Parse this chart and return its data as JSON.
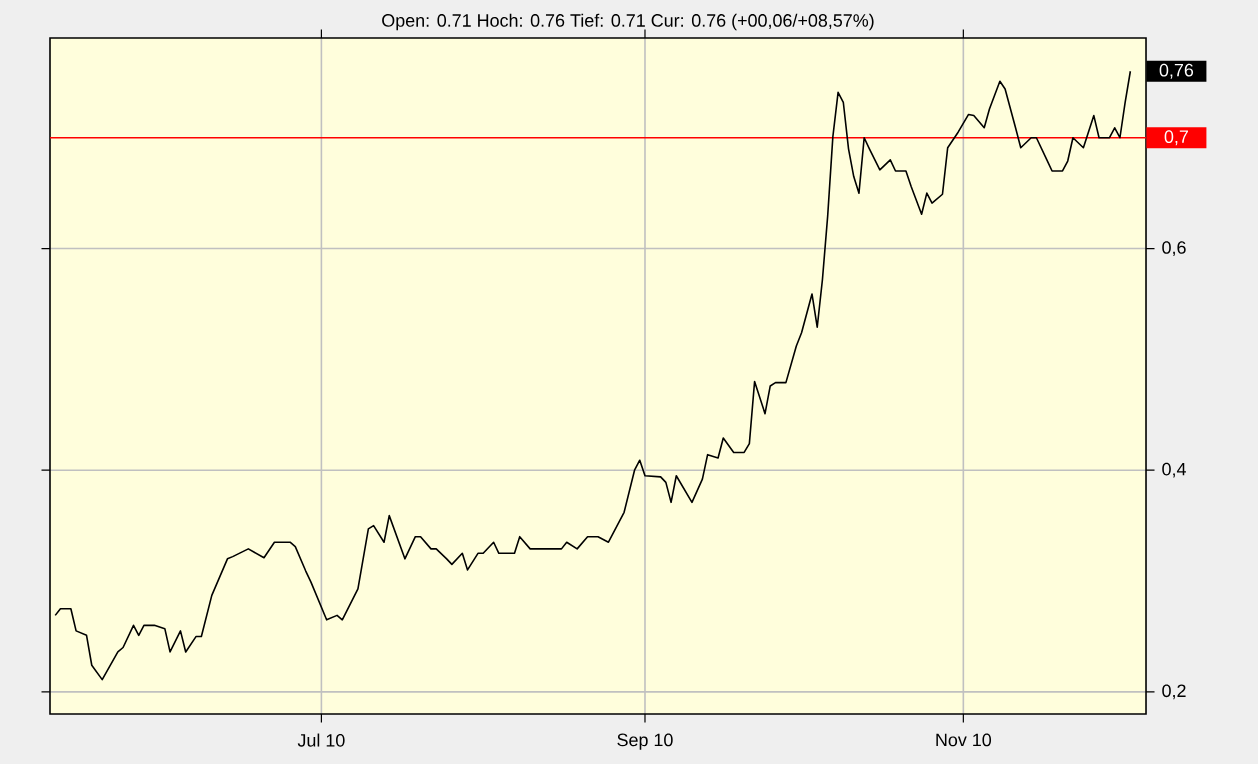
{
  "chart_data": {
    "type": "line",
    "subtitle": "Open: 0.71 Hoch: 0.76 Tief: 0.71 Cur: 0.76 (+00,06/+08,57%)",
    "series": [
      {
        "color": "#000000",
        "x": [
          "2010-05-11",
          "2010-05-12",
          "2010-05-14",
          "2010-05-15",
          "2010-05-17",
          "2010-05-18",
          "2010-05-20",
          "2010-05-23",
          "2010-05-24",
          "2010-05-26",
          "2010-05-27",
          "2010-05-28",
          "2010-05-30",
          "2010-06-01",
          "2010-06-02",
          "2010-06-04",
          "2010-06-05",
          "2010-06-07",
          "2010-06-08",
          "2010-06-10",
          "2010-06-13",
          "2010-06-14",
          "2010-06-17",
          "2010-06-20",
          "2010-06-22",
          "2010-06-25",
          "2010-06-26",
          "2010-06-28",
          "2010-06-29",
          "2010-07-02",
          "2010-07-04",
          "2010-07-05",
          "2010-07-08",
          "2010-07-10",
          "2010-07-11",
          "2010-07-13",
          "2010-07-14",
          "2010-07-17",
          "2010-07-19",
          "2010-07-20",
          "2010-07-22",
          "2010-07-23",
          "2010-07-25",
          "2010-07-26",
          "2010-07-28",
          "2010-07-29",
          "2010-07-31",
          "2010-08-01",
          "2010-08-03",
          "2010-08-04",
          "2010-08-07",
          "2010-08-08",
          "2010-08-10",
          "2010-08-16",
          "2010-08-17",
          "2010-08-19",
          "2010-08-21",
          "2010-08-23",
          "2010-08-25",
          "2010-08-28",
          "2010-08-30",
          "2010-08-31",
          "2010-09-01",
          "2010-09-04",
          "2010-09-05",
          "2010-09-06",
          "2010-09-07",
          "2010-09-10",
          "2010-09-12",
          "2010-09-13",
          "2010-09-15",
          "2010-09-16",
          "2010-09-18",
          "2010-09-20",
          "2010-09-21",
          "2010-09-22",
          "2010-09-24",
          "2010-09-25",
          "2010-09-26",
          "2010-09-28",
          "2010-09-30",
          "2010-10-01",
          "2010-10-03",
          "2010-10-04",
          "2010-10-05",
          "2010-10-06",
          "2010-10-07",
          "2010-10-08",
          "2010-10-09",
          "2010-10-10",
          "2010-10-11",
          "2010-10-12",
          "2010-10-13",
          "2010-10-14",
          "2010-10-16",
          "2010-10-18",
          "2010-10-19",
          "2010-10-21",
          "2010-10-22",
          "2010-10-24",
          "2010-10-25",
          "2010-10-26",
          "2010-10-28",
          "2010-10-29",
          "2010-10-31",
          "2010-11-02",
          "2010-11-03",
          "2010-11-05",
          "2010-11-06",
          "2010-11-08",
          "2010-11-09",
          "2010-11-11",
          "2010-11-12",
          "2010-11-14",
          "2010-11-15",
          "2010-11-17",
          "2010-11-18",
          "2010-11-20",
          "2010-11-21",
          "2010-11-22",
          "2010-11-24",
          "2010-11-26",
          "2010-11-27",
          "2010-11-29",
          "2010-11-30",
          "2010-12-01",
          "2010-12-02",
          "2010-12-03"
        ],
        "values": [
          0.269,
          0.275,
          0.275,
          0.255,
          0.251,
          0.224,
          0.211,
          0.236,
          0.24,
          0.26,
          0.251,
          0.26,
          0.26,
          0.257,
          0.236,
          0.255,
          0.236,
          0.25,
          0.25,
          0.287,
          0.32,
          0.322,
          0.329,
          0.321,
          0.335,
          0.335,
          0.331,
          0.309,
          0.299,
          0.265,
          0.269,
          0.265,
          0.293,
          0.347,
          0.35,
          0.335,
          0.359,
          0.32,
          0.34,
          0.34,
          0.329,
          0.329,
          0.32,
          0.315,
          0.325,
          0.31,
          0.325,
          0.325,
          0.335,
          0.325,
          0.325,
          0.34,
          0.329,
          0.329,
          0.335,
          0.329,
          0.34,
          0.34,
          0.335,
          0.362,
          0.4,
          0.409,
          0.395,
          0.394,
          0.389,
          0.371,
          0.395,
          0.371,
          0.392,
          0.414,
          0.411,
          0.429,
          0.416,
          0.416,
          0.424,
          0.48,
          0.451,
          0.476,
          0.479,
          0.479,
          0.512,
          0.524,
          0.559,
          0.529,
          0.572,
          0.629,
          0.701,
          0.741,
          0.732,
          0.69,
          0.665,
          0.65,
          0.7,
          0.69,
          0.671,
          0.68,
          0.67,
          0.67,
          0.656,
          0.631,
          0.65,
          0.641,
          0.649,
          0.691,
          0.705,
          0.721,
          0.72,
          0.709,
          0.726,
          0.751,
          0.744,
          0.709,
          0.691,
          0.7,
          0.7,
          0.68,
          0.67,
          0.67,
          0.679,
          0.7,
          0.691,
          0.72,
          0.7,
          0.7,
          0.709,
          0.7,
          0.732,
          0.76
        ]
      }
    ],
    "xlim": [
      "2010-05-10",
      "2010-12-06"
    ],
    "xticks": [
      {
        "value": "2010-07-01",
        "label": "Jul 10"
      },
      {
        "value": "2010-09-01",
        "label": "Sep 10"
      },
      {
        "value": "2010-11-01",
        "label": "Nov 10"
      }
    ],
    "ylim": [
      0.18,
      0.79
    ],
    "yticks": [
      {
        "value": 0.2,
        "label": "0,2"
      },
      {
        "value": 0.4,
        "label": "0,4"
      },
      {
        "value": 0.6,
        "label": "0,6"
      }
    ],
    "grid": true,
    "ref_lines": [
      {
        "axis": "y",
        "value": 0.7,
        "label": "0,7",
        "color": "#ff0000"
      }
    ],
    "annotations": [
      {
        "text": "0,76",
        "x": "2010-12-03",
        "y": 0.76
      }
    ]
  }
}
